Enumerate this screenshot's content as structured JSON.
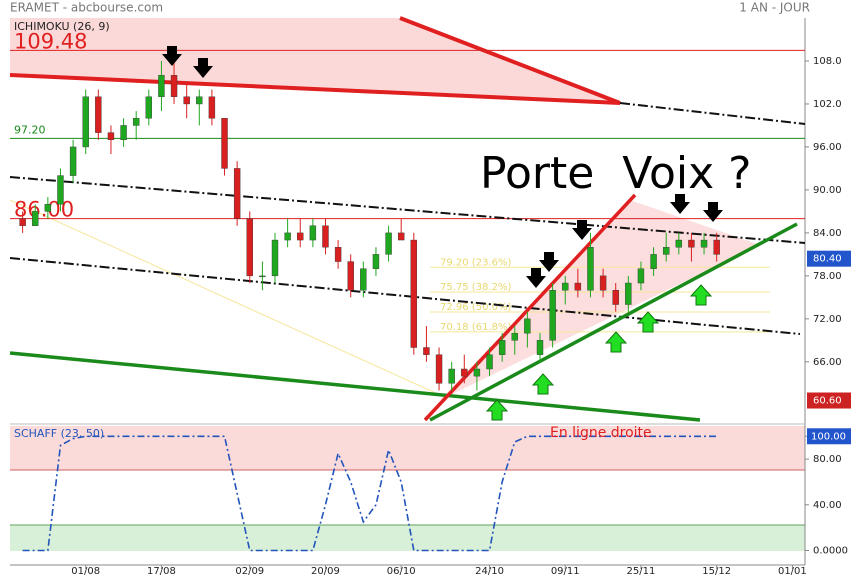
{
  "chart_data": {
    "type": "candlestick",
    "title": "ERAMET - abcbourse.com",
    "period": "1 AN - JOUR",
    "indicator": "ICHIMOKU (26, 9)",
    "annotation": "Porte  Voix ?",
    "up_color": "#1fa81f",
    "down_color": "#d92020",
    "candles": [
      [
        86,
        87,
        84,
        85
      ],
      [
        85,
        88,
        85,
        87
      ],
      [
        87,
        89,
        86,
        88
      ],
      [
        88,
        93,
        87,
        92
      ],
      [
        92,
        97,
        91,
        96
      ],
      [
        96,
        104,
        95,
        103
      ],
      [
        103,
        104,
        97,
        98
      ],
      [
        98,
        99,
        95,
        97
      ],
      [
        97,
        100,
        96,
        99
      ],
      [
        99,
        101,
        97,
        100
      ],
      [
        100,
        104,
        99,
        103
      ],
      [
        103,
        108,
        101,
        106
      ],
      [
        106,
        108,
        102,
        103
      ],
      [
        103,
        105,
        100,
        102
      ],
      [
        102,
        104,
        99,
        103
      ],
      [
        103,
        104,
        99,
        100
      ],
      [
        100,
        100,
        92,
        93
      ],
      [
        93,
        94,
        85,
        86
      ],
      [
        86,
        87,
        77,
        78
      ],
      [
        78,
        80,
        76,
        78
      ],
      [
        78,
        84,
        77,
        83
      ],
      [
        83,
        86,
        82,
        84
      ],
      [
        84,
        86,
        82,
        83
      ],
      [
        83,
        86,
        82,
        85
      ],
      [
        85,
        86,
        81,
        82
      ],
      [
        82,
        83,
        79,
        80
      ],
      [
        80,
        81,
        75,
        76
      ],
      [
        76,
        80,
        75,
        79
      ],
      [
        79,
        82,
        78,
        81
      ],
      [
        81,
        85,
        80,
        84
      ],
      [
        84,
        86,
        83,
        83
      ],
      [
        83,
        84,
        67,
        68
      ],
      [
        68,
        71,
        66,
        67
      ],
      [
        67,
        68,
        62,
        63
      ],
      [
        63,
        66,
        62,
        65
      ],
      [
        65,
        67,
        63,
        64
      ],
      [
        64,
        66,
        62,
        65
      ],
      [
        65,
        68,
        64,
        67
      ],
      [
        67,
        70,
        66,
        69
      ],
      [
        69,
        71,
        67,
        70
      ],
      [
        70,
        73,
        68,
        72
      ],
      [
        67,
        70,
        66,
        69
      ],
      [
        69,
        77,
        68,
        76
      ],
      [
        76,
        78,
        74,
        77
      ],
      [
        77,
        79,
        75,
        76
      ],
      [
        76,
        84,
        75,
        82
      ],
      [
        78,
        79,
        75,
        76
      ],
      [
        76,
        77,
        73,
        74
      ],
      [
        74,
        78,
        73,
        77
      ],
      [
        77,
        80,
        76,
        79
      ],
      [
        79,
        82,
        78,
        81
      ],
      [
        81,
        84,
        80,
        82
      ],
      [
        82,
        84,
        81,
        83
      ],
      [
        83,
        84,
        80,
        82
      ],
      [
        82,
        84,
        81,
        83
      ],
      [
        83,
        84,
        80,
        81
      ]
    ],
    "xlim": [
      -1,
      62
    ],
    "xticks": [
      {
        "value": 5,
        "label": "01/08"
      },
      {
        "value": 11,
        "label": "17/08"
      },
      {
        "value": 18,
        "label": "02/09"
      },
      {
        "value": 24,
        "label": "20/09"
      },
      {
        "value": 30,
        "label": "06/10"
      },
      {
        "value": 37,
        "label": "24/10"
      },
      {
        "value": 43,
        "label": "09/11"
      },
      {
        "value": 49,
        "label": "25/11"
      },
      {
        "value": 55,
        "label": "15/12"
      },
      {
        "value": 61,
        "label": "01/01"
      }
    ],
    "ylim": [
      57.6,
      114
    ],
    "yticks": [
      {
        "value": 108,
        "label": "108.0"
      },
      {
        "value": 102,
        "label": "102.0"
      },
      {
        "value": 96,
        "label": "96.00"
      },
      {
        "value": 90,
        "label": "90.00"
      },
      {
        "value": 84,
        "label": "84.00"
      },
      {
        "value": 78,
        "label": "78.00"
      },
      {
        "value": 72,
        "label": "72.00"
      },
      {
        "value": 66,
        "label": "66.00"
      }
    ],
    "levels": [
      {
        "value": 109.48,
        "label": "109.48",
        "color": "#e02020"
      },
      {
        "value": 97.2,
        "label": "97.20",
        "color": "#1a8a1a"
      },
      {
        "value": 86,
        "label": "86.00",
        "color": "#e02020"
      }
    ],
    "fib_levels": [
      {
        "value": 79.2,
        "label": "79.20 (23.6%)"
      },
      {
        "value": 75.75,
        "label": "75.75 (38.2%)"
      },
      {
        "value": 72.96,
        "label": "72.96 (50.0%)"
      },
      {
        "value": 70.18,
        "label": "70.18 (61.8%)"
      }
    ],
    "value_boxes": [
      {
        "value": 80.4,
        "label": "80.40",
        "color": "#2255cc"
      },
      {
        "value": 60.6,
        "label": "60.60",
        "color": "#cc2222"
      }
    ],
    "oscillator": {
      "name": "SCHAFF (23, 50)",
      "annotation": "En ligne droite",
      "color": "#2255bb",
      "values": [
        0,
        0,
        0,
        92,
        98,
        100,
        100,
        100,
        100,
        100,
        100,
        100,
        100,
        100,
        100,
        100,
        100,
        50,
        0,
        0,
        0,
        0,
        0,
        0,
        40,
        85,
        60,
        25,
        40,
        88,
        60,
        0,
        0,
        0,
        0,
        0,
        0,
        0,
        60,
        95,
        100,
        100,
        100,
        100,
        100,
        100,
        100,
        100,
        100,
        100,
        100,
        100,
        100,
        100,
        100,
        100
      ],
      "ylim": [
        -12.7,
        109
      ],
      "yticks": [
        {
          "value": 100,
          "label": "100.00"
        },
        {
          "value": 80,
          "label": "80.00"
        },
        {
          "value": 40,
          "label": "40.00"
        },
        {
          "value": 0,
          "label": "0.0000"
        }
      ]
    }
  }
}
